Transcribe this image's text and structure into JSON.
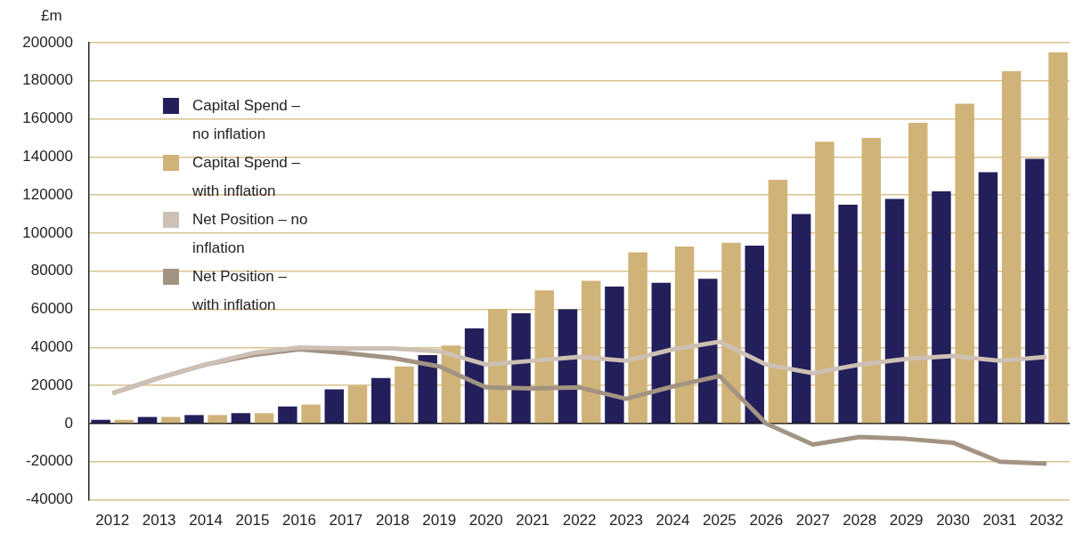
{
  "chart_data": {
    "type": "bar",
    "ylabel": "£m",
    "categories": [
      "2012",
      "2013",
      "2014",
      "2015",
      "2016",
      "2017",
      "2018",
      "2019",
      "2020",
      "2021",
      "2022",
      "2023",
      "2024",
      "2025",
      "2026",
      "2027",
      "2028",
      "2029",
      "2030",
      "2031",
      "2032"
    ],
    "series": [
      {
        "name": "Capital Spend – no inflation",
        "color": "#231f5a",
        "values": [
          2000,
          3500,
          4500,
          5500,
          9000,
          18000,
          24000,
          36000,
          50000,
          58000,
          60000,
          72000,
          74000,
          76000,
          93500,
          110000,
          115000,
          118000,
          122000,
          132000,
          139000
        ]
      },
      {
        "name": "Capital Spend – with inflation",
        "color": "#cfb378",
        "values": [
          2000,
          3500,
          4500,
          5500,
          10000,
          20000,
          30000,
          41000,
          60000,
          70000,
          75000,
          90000,
          93000,
          95000,
          128000,
          148000,
          150000,
          158000,
          168000,
          185000,
          195000
        ]
      },
      {
        "name": "Net Position – no inflation",
        "type": "line",
        "color": "#cdc0b4",
        "values": [
          16000,
          24000,
          31000,
          37000,
          40000,
          39500,
          39500,
          38000,
          31000,
          33000,
          35000,
          33000,
          39000,
          43000,
          31000,
          26500,
          31000,
          34000,
          35500,
          33000,
          35000
        ]
      },
      {
        "name": "Net Position – with inflation",
        "type": "line",
        "color": "#a39382",
        "values": [
          16000,
          24000,
          31000,
          36000,
          39000,
          37000,
          34500,
          30000,
          19000,
          18500,
          19000,
          13000,
          19500,
          25000,
          0,
          -11000,
          -7000,
          -8000,
          -10000,
          -20000,
          -21000
        ]
      }
    ],
    "ylim": [
      -40000,
      200000
    ],
    "yticks": [
      -40000,
      -20000,
      0,
      20000,
      40000,
      60000,
      80000,
      100000,
      120000,
      140000,
      160000,
      180000,
      200000
    ],
    "grid": "y",
    "legend": "top left",
    "marker": "none",
    "line_style": "solid"
  }
}
